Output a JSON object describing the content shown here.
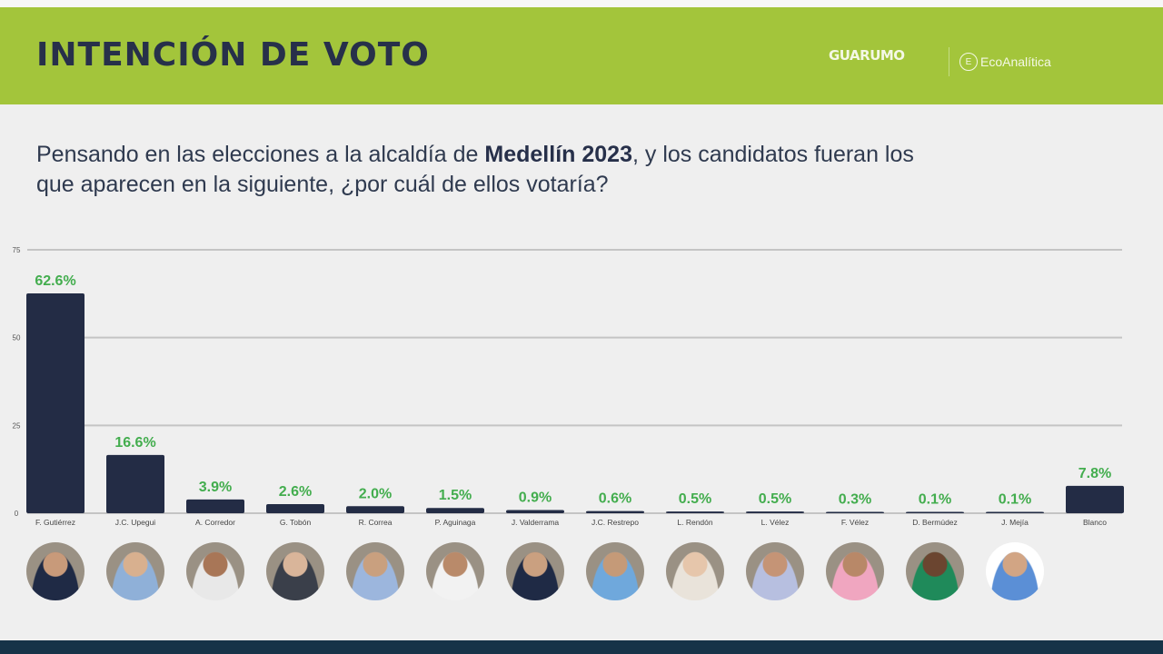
{
  "header": {
    "title": "INTENCIÓN DE VOTO",
    "logo_guarumo": "GUARUMO",
    "logo_eco": "EcoAnalítica"
  },
  "question": {
    "part1": "Pensando en las elecciones a la alcaldía de ",
    "bold": "Medellín 2023",
    "part2": ", y los candidatos fueran los que aparecen en la siguiente, ¿por cuál de ellos votaría?"
  },
  "chart_data": {
    "type": "bar",
    "categories": [
      "F. Gutiérrez",
      "J.C. Upegui",
      "A. Corredor",
      "G. Tobón",
      "R. Correa",
      "P. Aguinaga",
      "J. Valderrama",
      "J.C. Restrepo",
      "L. Rendón",
      "L. Vélez",
      "F. Vélez",
      "D. Bermúdez",
      "J. Mejía",
      "Blanco"
    ],
    "values": [
      62.6,
      16.6,
      3.9,
      2.6,
      2.0,
      1.5,
      0.9,
      0.6,
      0.5,
      0.5,
      0.3,
      0.1,
      0.1,
      7.8
    ],
    "data_labels": [
      "62.6%",
      "16.6%",
      "3.9%",
      "2.6%",
      "2.0%",
      "1.5%",
      "0.9%",
      "0.6%",
      "0.5%",
      "0.5%",
      "0.3%",
      "0.1%",
      "0.1%",
      "7.8%"
    ],
    "ylim": [
      0,
      75
    ],
    "yticks": [
      0,
      25,
      50,
      75
    ],
    "grid": true,
    "colors": {
      "bar": "#232c45",
      "label": "#43ad4e",
      "grid": "#c4c4c4"
    }
  },
  "photos_count": 13
}
